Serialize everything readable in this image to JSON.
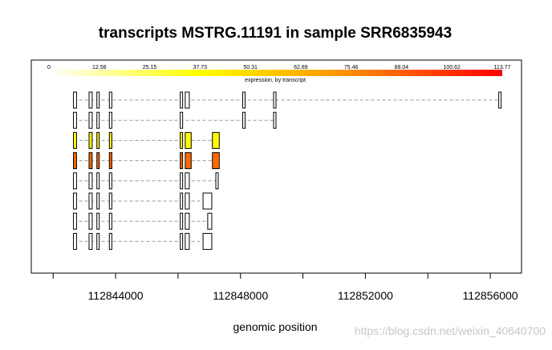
{
  "chart_data": {
    "type": "gene-structure",
    "title": "transcripts MSTRG.11191 in sample SRR6835943",
    "xlabel": "genomic position",
    "xlim": [
      112841300,
      112857000
    ],
    "x_ticks": [
      {
        "value": 112842000,
        "label": ""
      },
      {
        "value": 112844000,
        "label": "112844000"
      },
      {
        "value": 112846000,
        "label": ""
      },
      {
        "value": 112848000,
        "label": "112848000"
      },
      {
        "value": 112850000,
        "label": ""
      },
      {
        "value": 112852000,
        "label": "112852000"
      },
      {
        "value": 112854000,
        "label": ""
      },
      {
        "value": 112856000,
        "label": "112856000"
      }
    ],
    "colorbar": {
      "label": "expression, by transcript",
      "range": [
        0,
        113.77
      ],
      "ticks": [
        "0",
        "12.58",
        "25.15",
        "37.73",
        "50.31",
        "62.89",
        "75.46",
        "88.04",
        "100.62",
        "113.77"
      ],
      "colors": [
        "#ffffff",
        "#ffff00",
        "#ff8c00",
        "#ff0000"
      ]
    },
    "transcripts": [
      {
        "expression": 0,
        "exons": [
          [
            112842650,
            112842750
          ],
          [
            112843150,
            112843250
          ],
          [
            112843400,
            112843440
          ],
          [
            112843800,
            112843880
          ],
          [
            112846070,
            112846120
          ],
          [
            112846230,
            112846360
          ],
          [
            112848070,
            112848120
          ],
          [
            112849060,
            112849130
          ],
          [
            112856270,
            112856330
          ]
        ]
      },
      {
        "expression": 0,
        "exons": [
          [
            112842650,
            112842750
          ],
          [
            112843150,
            112843250
          ],
          [
            112843400,
            112843440
          ],
          [
            112843800,
            112843880
          ],
          [
            112846070,
            112846120
          ],
          [
            112848070,
            112848120
          ],
          [
            112849060,
            112849130
          ]
        ]
      },
      {
        "expression": 40,
        "exons": [
          [
            112842650,
            112842750
          ],
          [
            112843150,
            112843250
          ],
          [
            112843400,
            112843440
          ],
          [
            112843800,
            112843880
          ],
          [
            112846070,
            112846120
          ],
          [
            112846230,
            112846420
          ],
          [
            112847100,
            112847320
          ]
        ]
      },
      {
        "expression": 85,
        "exons": [
          [
            112842650,
            112842750
          ],
          [
            112843150,
            112843250
          ],
          [
            112843400,
            112843440
          ],
          [
            112843800,
            112843880
          ],
          [
            112846070,
            112846120
          ],
          [
            112846230,
            112846420
          ],
          [
            112847100,
            112847320
          ]
        ]
      },
      {
        "expression": 0,
        "exons": [
          [
            112842650,
            112842750
          ],
          [
            112843150,
            112843250
          ],
          [
            112843400,
            112843440
          ],
          [
            112843800,
            112843880
          ],
          [
            112846070,
            112846120
          ],
          [
            112846230,
            112846360
          ],
          [
            112847210,
            112847270
          ]
        ]
      },
      {
        "expression": 0,
        "exons": [
          [
            112842650,
            112842750
          ],
          [
            112843150,
            112843250
          ],
          [
            112843400,
            112843440
          ],
          [
            112843800,
            112843880
          ],
          [
            112846070,
            112846120
          ],
          [
            112846230,
            112846360
          ],
          [
            112846800,
            112847080
          ]
        ]
      },
      {
        "expression": 0,
        "exons": [
          [
            112842650,
            112842750
          ],
          [
            112843150,
            112843250
          ],
          [
            112843400,
            112843440
          ],
          [
            112843800,
            112843880
          ],
          [
            112846070,
            112846120
          ],
          [
            112846230,
            112846360
          ],
          [
            112846950,
            112847080
          ]
        ]
      },
      {
        "expression": 0,
        "exons": [
          [
            112842650,
            112842750
          ],
          [
            112843150,
            112843250
          ],
          [
            112843400,
            112843440
          ],
          [
            112843800,
            112843880
          ],
          [
            112846070,
            112846120
          ],
          [
            112846230,
            112846360
          ],
          [
            112846800,
            112847080
          ]
        ]
      }
    ]
  },
  "watermark": "https://blog.csdn.net/weixin_40640700"
}
